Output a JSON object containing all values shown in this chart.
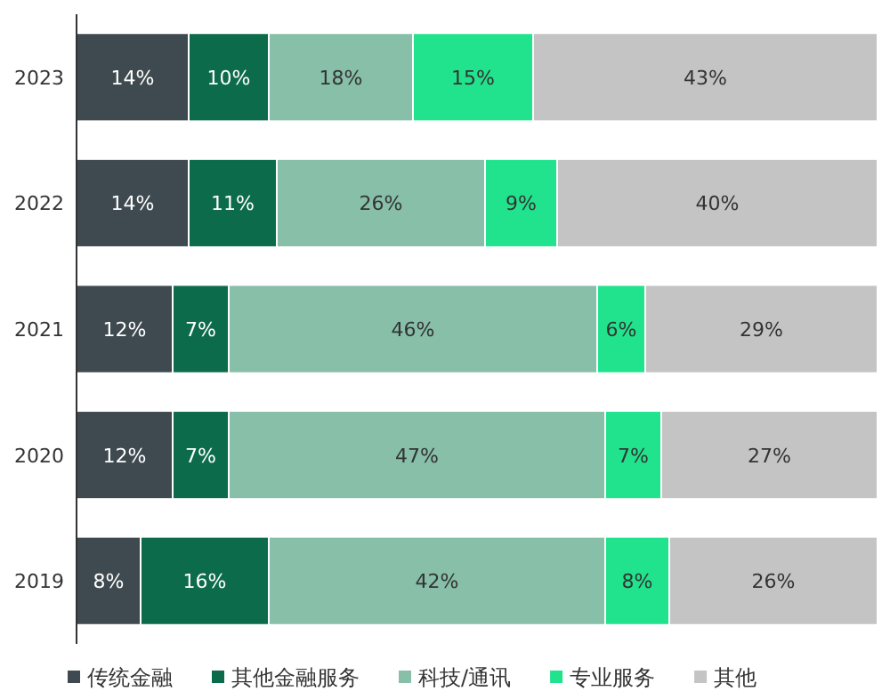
{
  "chart_data": {
    "type": "bar",
    "orientation": "horizontal",
    "stacked": true,
    "legend": "bottom",
    "categories": [
      "2023",
      "2022",
      "2021",
      "2020",
      "2019"
    ],
    "series": [
      {
        "name": "传统金融",
        "color": "#3e4a4f",
        "values": [
          14,
          14,
          12,
          12,
          8
        ],
        "value_labels": [
          "14%",
          "14%",
          "12%",
          "12%",
          "8%"
        ]
      },
      {
        "name": "其他金融服务",
        "color": "#0c6b4a",
        "values": [
          10,
          11,
          7,
          7,
          16
        ],
        "value_labels": [
          "10%",
          "11%",
          "7%",
          "7%",
          "16%"
        ]
      },
      {
        "name": "科技/通讯",
        "color": "#87bfa9",
        "values": [
          18,
          26,
          46,
          47,
          42
        ],
        "value_labels": [
          "18%",
          "26%",
          "46%",
          "47%",
          "42%"
        ]
      },
      {
        "name": "专业服务",
        "color": "#22e38d",
        "values": [
          15,
          9,
          6,
          7,
          8
        ],
        "value_labels": [
          "15%",
          "9%",
          "6%",
          "7%",
          "8%"
        ]
      },
      {
        "name": "其他",
        "color": "#c4c4c4",
        "values": [
          43,
          40,
          29,
          27,
          26
        ],
        "value_labels": [
          "43%",
          "40%",
          "29%",
          "27%",
          "26%"
        ]
      }
    ]
  }
}
